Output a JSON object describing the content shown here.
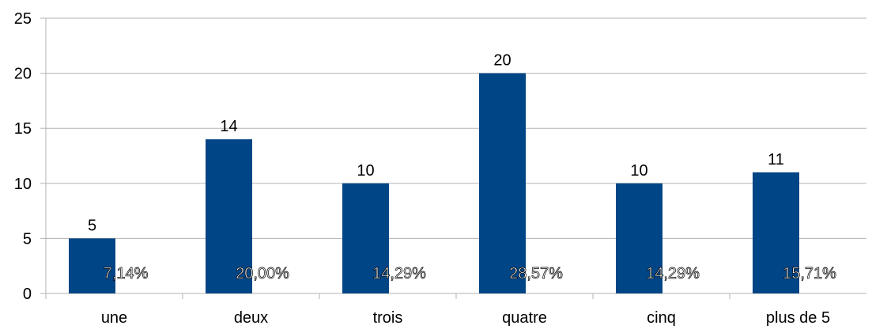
{
  "chart_data": {
    "type": "bar",
    "title": "",
    "xlabel": "",
    "ylabel": "",
    "categories": [
      "une",
      "deux",
      "trois",
      "quatre",
      "cinq",
      "plus de 5"
    ],
    "values": [
      5,
      14,
      10,
      20,
      10,
      11
    ],
    "value_labels": [
      "5",
      "14",
      "10",
      "20",
      "10",
      "11"
    ],
    "percent_labels": [
      "7,14%",
      "20,00%",
      "14,29%",
      "28,57%",
      "14,29%",
      "15,71%"
    ],
    "ylim": [
      0,
      25
    ],
    "y_ticks": [
      0,
      5,
      10,
      15,
      20,
      25
    ],
    "grid": true,
    "legend": "none",
    "colors": {
      "bar": "#004586",
      "grid": "#b3b3b3",
      "axis": "#b3b3b3",
      "text": "#000000",
      "percent_fill": "#ffffff",
      "percent_stroke": "#000000"
    }
  }
}
